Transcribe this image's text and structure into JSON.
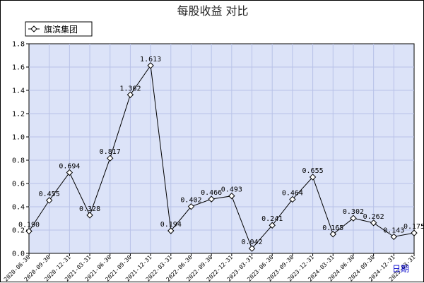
{
  "chart_data": {
    "type": "line",
    "title": "每股收益 对比",
    "xlabel": "日期",
    "ylabel": "",
    "ylim": [
      0,
      1.8
    ],
    "yticks": [
      "0.0",
      "0.2",
      "0.4",
      "0.6",
      "0.8",
      "1.0",
      "1.2",
      "1.4",
      "1.6",
      "1.8"
    ],
    "grid": true,
    "legend_position": "top-left",
    "line_color": "#000000",
    "plot_background": "#dce3f8",
    "grid_color": "#b8c2e8",
    "categories": [
      "2020-06-30",
      "2020-09-30",
      "2020-12-31",
      "2021-03-31",
      "2021-06-30",
      "2021-09-30",
      "2021-12-31",
      "2022-03-31",
      "2022-06-30",
      "2022-09-30",
      "2022-12-31",
      "2023-03-31",
      "2023-06-30",
      "2023-09-30",
      "2023-12-31",
      "2024-03-31",
      "2024-06-30",
      "2024-09-30",
      "2024-12-31",
      "2025-03-31"
    ],
    "series": [
      {
        "name": "旗滨集团",
        "values": [
          0.19,
          0.455,
          0.694,
          0.328,
          0.817,
          1.362,
          1.613,
          0.194,
          0.402,
          0.466,
          0.493,
          0.042,
          0.241,
          0.464,
          0.655,
          0.165,
          0.302,
          0.262,
          0.143,
          0.175
        ],
        "labels": [
          "0.190",
          "0.455",
          "0.694",
          "0.328",
          "0.817",
          "1.362",
          "1.613",
          "0.194",
          "0.402",
          "0.466",
          "0.493",
          "0.042",
          "0.241",
          "0.464",
          "0.655",
          "0.165",
          "0.302",
          "0.262",
          "0.143",
          "0.175"
        ]
      }
    ]
  }
}
